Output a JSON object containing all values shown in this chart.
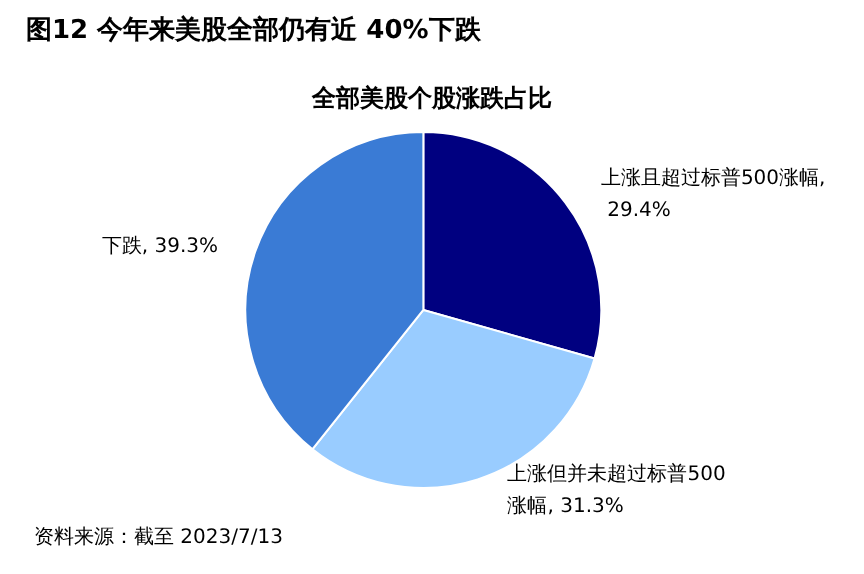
{
  "chart_data": {
    "type": "pie",
    "title": "图12 今年来美股全部仍有近 40%下跌",
    "subtitle": "全部美股个股涨跌占比",
    "categories": [
      "上涨且超过标普500涨幅",
      "上涨但并未超过标普500涨幅",
      "下跌"
    ],
    "values": [
      29.4,
      31.3,
      39.3
    ],
    "colors": [
      "#000080",
      "#99ccff",
      "#3a7bd5"
    ],
    "value_labels": [
      ", 29.4%",
      ", 31.3%",
      ", 39.3%"
    ],
    "legend": false,
    "annotations": [
      "资料来源：截至 2023/7/13"
    ]
  }
}
